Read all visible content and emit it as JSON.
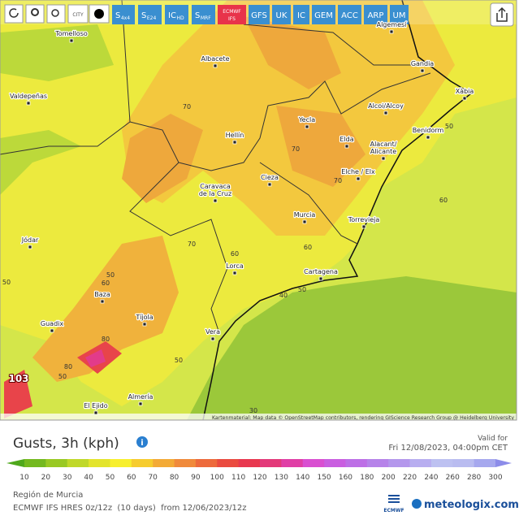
{
  "toolbar": {
    "city": "CITY",
    "buttons": [
      {
        "main": "S",
        "sub": "4x4"
      },
      {
        "main": "S",
        "sub": "E24"
      },
      {
        "main": "IC",
        "sub": "HD"
      },
      {
        "main": "S",
        "sub": "MRF"
      },
      {
        "main": "ECMWF",
        "sub": "IFS"
      },
      {
        "main": "GFS"
      },
      {
        "main": "UK"
      },
      {
        "main": "IC"
      },
      {
        "main": "GEM"
      },
      {
        "main": "ACC"
      },
      {
        "main": "ARP"
      },
      {
        "main": "UM"
      }
    ]
  },
  "map": {
    "cities": [
      "Tomelloso",
      "Algemesí",
      "Albacete",
      "Gandia",
      "Valdepeñas",
      "Xàbia",
      "Alcoi/Alcoy",
      "Benidorm",
      "Hellín",
      "Yecla",
      "Elda",
      "Alacant/\nAlicante",
      "Elche / Elx",
      "Cieza",
      "Caravaca\nde la Cruz",
      "Murcia",
      "Torrevieja",
      "Jódar",
      "Lorca",
      "Cartagena",
      "Baza",
      "Tíjola",
      "Guadix",
      "Vera",
      "Almería",
      "El Ejido"
    ],
    "contour_labels": [
      70,
      70,
      70,
      60,
      70,
      60,
      60,
      50,
      60,
      50,
      80,
      80,
      50,
      50,
      40,
      50,
      50,
      30
    ],
    "max_label": "103",
    "attribution": "Kartenmaterial: Map data © OpenStreetMap contributors, rendering GIScience Research Group @ Heidelberg University"
  },
  "header": {
    "title": "Gusts, 3h (kph)",
    "valid_label": "Valid for",
    "valid_time": "Fri 12/08/2023, 04:00pm CET"
  },
  "legend": {
    "ticks": [
      10,
      20,
      30,
      40,
      50,
      60,
      70,
      80,
      90,
      100,
      110,
      120,
      130,
      140,
      150,
      160,
      180,
      200,
      220,
      240,
      260,
      280,
      300
    ],
    "colors": [
      "#4fa81c",
      "#74b91f",
      "#99c923",
      "#c0d829",
      "#e3e42c",
      "#f7ef2e",
      "#f6cc2e",
      "#f3aa36",
      "#f08a3b",
      "#ed6a3c",
      "#ea4b40",
      "#e8384f",
      "#e33a7a",
      "#e03fa6",
      "#d94fd1",
      "#c95ee0",
      "#bd6fe6",
      "#b683e9",
      "#b497ec",
      "#b8aef0",
      "#bdc1f1",
      "#b9bcf0",
      "#a6a8ee",
      "#8c8ce9"
    ]
  },
  "footer": {
    "region": "Región de Murcia",
    "model": "ECMWF IFS HRES 0z/12z  (10 days)  from 12/06/2023/12z",
    "ecmwf": "ECMWF",
    "brand": "meteologix.com"
  }
}
